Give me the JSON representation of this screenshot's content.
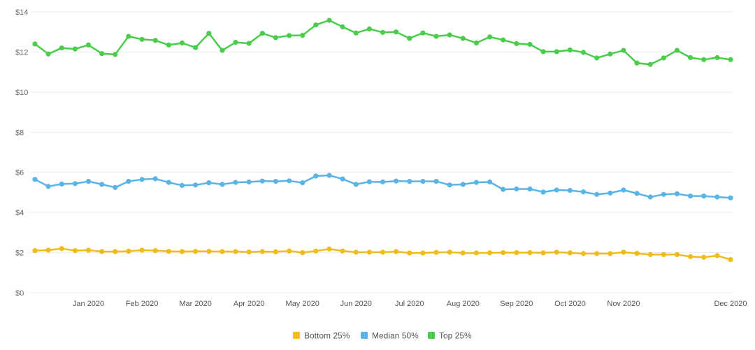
{
  "chart_data": {
    "type": "line",
    "title": "",
    "xlabel": "",
    "ylabel": "",
    "ylim": [
      0,
      14
    ],
    "y_ticks": [
      0,
      2,
      4,
      6,
      8,
      10,
      12,
      14
    ],
    "y_tick_labels": [
      "$0",
      "$2",
      "$4",
      "$6",
      "$8",
      "$10",
      "$12",
      "$14"
    ],
    "grid": true,
    "legend_position": "bottom-center",
    "x_tick_labels": [
      {
        "index": 4,
        "label": "Jan 2020"
      },
      {
        "index": 8,
        "label": "Feb 2020"
      },
      {
        "index": 12,
        "label": "Mar 2020"
      },
      {
        "index": 16,
        "label": "Apr 2020"
      },
      {
        "index": 20,
        "label": "May 2020"
      },
      {
        "index": 24,
        "label": "Jun 2020"
      },
      {
        "index": 28,
        "label": "Jul 2020"
      },
      {
        "index": 32,
        "label": "Aug 2020"
      },
      {
        "index": 36,
        "label": "Sep 2020"
      },
      {
        "index": 40,
        "label": "Oct 2020"
      },
      {
        "index": 44,
        "label": "Nov 2020"
      },
      {
        "index": 52,
        "label": "Dec 2020"
      }
    ],
    "series": [
      {
        "name": "Bottom 25%",
        "color": "#f0bc19",
        "values": [
          2.1,
          2.12,
          2.2,
          2.1,
          2.12,
          2.05,
          2.05,
          2.07,
          2.12,
          2.1,
          2.06,
          2.05,
          2.06,
          2.06,
          2.05,
          2.05,
          2.03,
          2.05,
          2.04,
          2.08,
          2.0,
          2.08,
          2.18,
          2.08,
          2.02,
          2.02,
          2.02,
          2.05,
          1.98,
          1.98,
          2.01,
          2.02,
          1.98,
          1.98,
          1.99,
          2.0,
          2.0,
          2.0,
          1.99,
          2.02,
          1.99,
          1.95,
          1.95,
          1.95,
          2.02,
          1.96,
          1.9,
          1.9,
          1.9,
          1.8,
          1.77,
          1.85,
          1.65
        ]
      },
      {
        "name": "Median 50%",
        "color": "#5ab4e6",
        "values": [
          5.65,
          5.3,
          5.42,
          5.44,
          5.55,
          5.4,
          5.25,
          5.55,
          5.65,
          5.68,
          5.5,
          5.35,
          5.37,
          5.48,
          5.4,
          5.5,
          5.52,
          5.57,
          5.55,
          5.58,
          5.48,
          5.82,
          5.85,
          5.67,
          5.4,
          5.53,
          5.52,
          5.57,
          5.55,
          5.55,
          5.55,
          5.37,
          5.4,
          5.5,
          5.52,
          5.15,
          5.17,
          5.17,
          5.02,
          5.12,
          5.1,
          5.03,
          4.9,
          4.97,
          5.12,
          4.95,
          4.77,
          4.9,
          4.93,
          4.82,
          4.82,
          4.77,
          4.73
        ]
      },
      {
        "name": "Top 25%",
        "color": "#4ccc4c",
        "values": [
          12.4,
          11.9,
          12.2,
          12.15,
          12.35,
          11.92,
          11.88,
          12.78,
          12.63,
          12.58,
          12.35,
          12.45,
          12.22,
          12.93,
          12.08,
          12.48,
          12.43,
          12.93,
          12.72,
          12.82,
          12.83,
          13.35,
          13.58,
          13.25,
          12.95,
          13.15,
          12.98,
          13.0,
          12.68,
          12.95,
          12.78,
          12.85,
          12.68,
          12.45,
          12.75,
          12.6,
          12.42,
          12.38,
          12.02,
          12.02,
          12.1,
          11.98,
          11.7,
          11.9,
          12.08,
          11.45,
          11.38,
          11.7,
          12.08,
          11.72,
          11.62,
          11.72,
          11.62
        ]
      }
    ]
  }
}
